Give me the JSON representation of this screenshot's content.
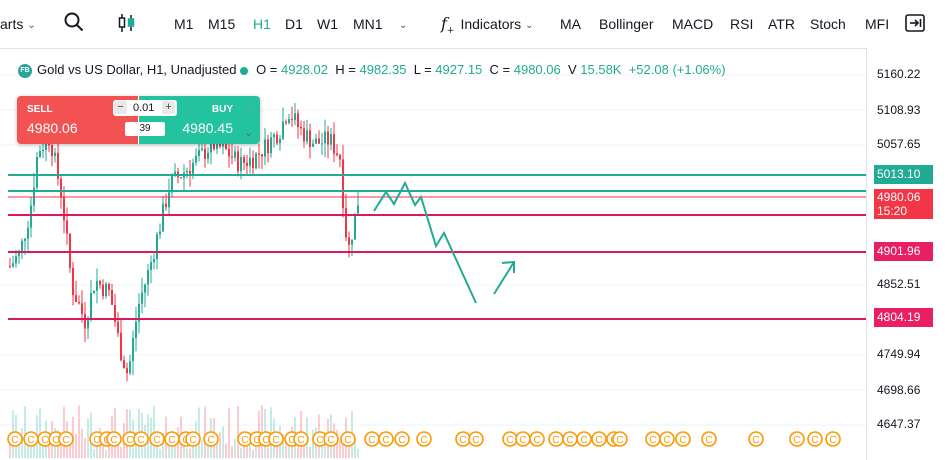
{
  "toolbar": {
    "charts_label": "arts",
    "intervals": [
      "M1",
      "M15",
      "H1",
      "D1",
      "W1",
      "MN1"
    ],
    "active_interval": "H1",
    "indicators_label": "Indicators",
    "studies": [
      "MA",
      "Bollinger",
      "MACD",
      "RSI",
      "ATR",
      "Stoch",
      "MFI"
    ]
  },
  "legend": {
    "badge": "FB",
    "title": "Gold vs US Dollar, H1, Unadjusted",
    "open_key": "O =",
    "open": "4928.02",
    "high_key": "H =",
    "high": "4982.35",
    "low_key": "L =",
    "low": "4927.15",
    "close_key": "C =",
    "close": "4980.06",
    "volume_key": "V",
    "volume": "15.58K",
    "change": "+52.08 (+1.06%)"
  },
  "trade": {
    "sell_label": "SELL",
    "sell_price": "4980.06",
    "buy_label": "BUY",
    "buy_price": "4980.45",
    "quantity": "0.01",
    "spread": "39"
  },
  "price_axis": {
    "ticks": [
      "5160.22",
      "5108.93",
      "5057.65",
      "4852.51",
      "4749.94",
      "4698.66",
      "4647.37"
    ],
    "labels": [
      {
        "value": "5013.10",
        "color": "#22ab94"
      },
      {
        "value": "4980.06",
        "color": "#f23645"
      },
      {
        "value": "15:20",
        "color": "#f23645"
      },
      {
        "value": "4901.96",
        "color": "#e91e63"
      },
      {
        "value": "4804.19",
        "color": "#e91e63"
      }
    ]
  },
  "colors": {
    "accent": "#22ab94",
    "bull": "#22ab94",
    "bear": "#f23645",
    "level": "#d81b60",
    "event": "#ff9800"
  },
  "events": {
    "glyph": "C"
  }
}
